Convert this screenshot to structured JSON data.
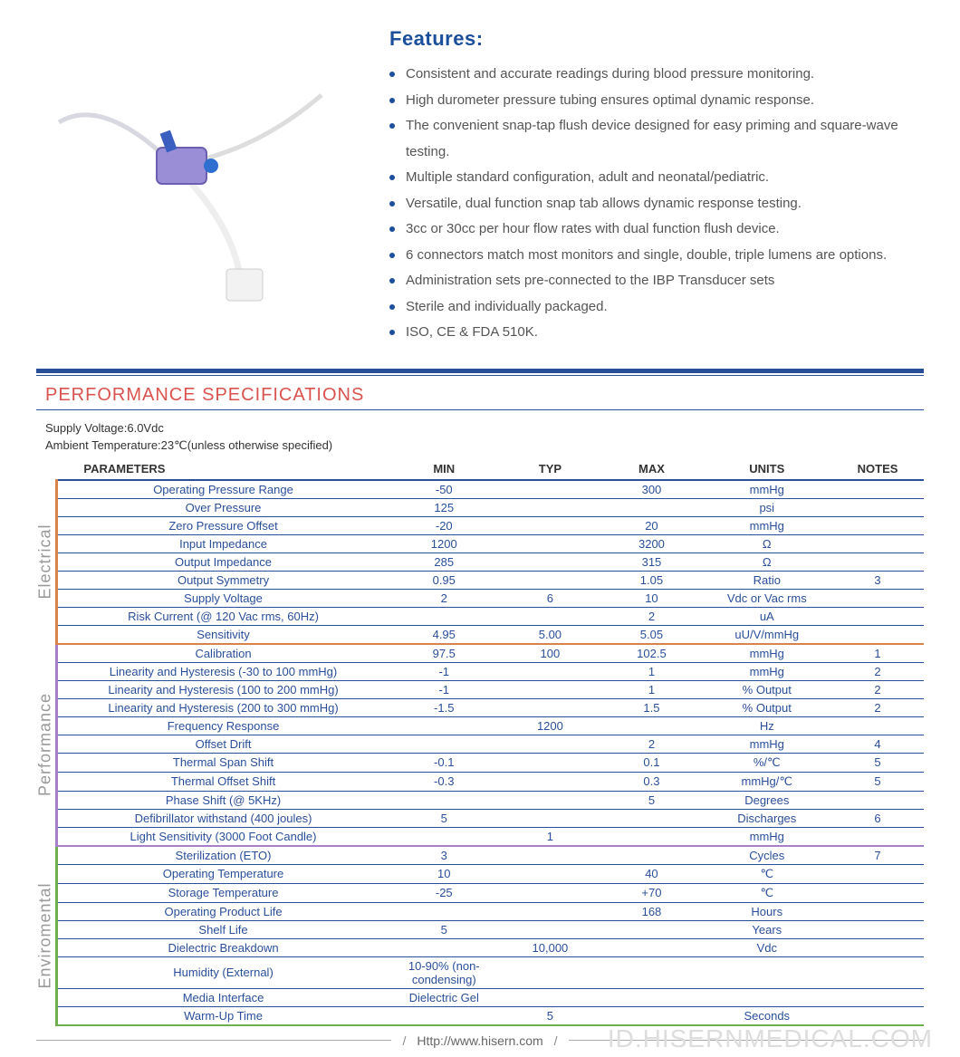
{
  "features": {
    "title": "Features:",
    "items": [
      "Consistent and accurate readings during blood pressure monitoring.",
      "High durometer pressure tubing ensures optimal dynamic response.",
      "The convenient snap-tap flush device designed for easy priming and square-wave testing.",
      "Multiple standard configuration, adult and neonatal/pediatric.",
      "Versatile, dual function snap tab allows dynamic response testing.",
      "3cc or 30cc per hour flow rates with dual function flush device.",
      "6 connectors match most monitors and single, double, triple lumens are options.",
      "Administration sets pre-connected to the IBP Transducer sets",
      "Sterile and individually packaged.",
      "ISO, CE & FDA 510K."
    ]
  },
  "spec": {
    "section_title": "PERFORMANCE SPECIFICATIONS",
    "conditions": [
      "Supply Voltage:6.0Vdc",
      "Ambient Temperature:23℃(unless otherwise specified)"
    ],
    "columns": [
      "PARAMETERS",
      "MIN",
      "TYP",
      "MAX",
      "UNITS",
      "NOTES"
    ],
    "groups": [
      {
        "label": "Electrical",
        "color": "#d9834a",
        "rows": [
          {
            "param": "Operating Pressure Range",
            "min": "-50",
            "typ": "",
            "max": "300",
            "units": "mmHg",
            "notes": ""
          },
          {
            "param": "Over  Pressure",
            "min": "125",
            "typ": "",
            "max": "",
            "units": "psi",
            "notes": ""
          },
          {
            "param": "Zero Pressure Offset",
            "min": "-20",
            "typ": "",
            "max": "20",
            "units": "mmHg",
            "notes": ""
          },
          {
            "param": "Input Impedance",
            "min": "1200",
            "typ": "",
            "max": "3200",
            "units": "Ω",
            "notes": ""
          },
          {
            "param": "Output Impedance",
            "min": "285",
            "typ": "",
            "max": "315",
            "units": "Ω",
            "notes": ""
          },
          {
            "param": "Output Symmetry",
            "min": "0.95",
            "typ": "",
            "max": "1.05",
            "units": "Ratio",
            "notes": "3"
          },
          {
            "param": "Supply Voltage",
            "min": "2",
            "typ": "6",
            "max": "10",
            "units": "Vdc or Vac rms",
            "notes": ""
          },
          {
            "param": "Risk Current (@ 120 Vac rms, 60Hz)",
            "min": "",
            "typ": "",
            "max": "2",
            "units": "uA",
            "notes": ""
          },
          {
            "param": "Sensitivity",
            "min": "4.95",
            "typ": "5.00",
            "max": "5.05",
            "units": "uU/V/mmHg",
            "notes": ""
          }
        ]
      },
      {
        "label": "Performance",
        "color": "#a97fc9",
        "rows": [
          {
            "param": "Calibration",
            "min": "97.5",
            "typ": "100",
            "max": "102.5",
            "units": "mmHg",
            "notes": "1"
          },
          {
            "param": "Linearity and Hysteresis (-30 to 100 mmHg)",
            "min": "-1",
            "typ": "",
            "max": "1",
            "units": "mmHg",
            "notes": "2"
          },
          {
            "param": "Linearity and Hysteresis (100 to 200 mmHg)",
            "min": "-1",
            "typ": "",
            "max": "1",
            "units": "% Output",
            "notes": "2"
          },
          {
            "param": "Linearity and Hysteresis (200 to 300 mmHg)",
            "min": "-1.5",
            "typ": "",
            "max": "1.5",
            "units": "% Output",
            "notes": "2"
          },
          {
            "param": "Frequency Response",
            "min": "",
            "typ": "1200",
            "max": "",
            "units": "Hz",
            "notes": ""
          },
          {
            "param": "Offset Drift",
            "min": "",
            "typ": "",
            "max": "2",
            "units": "mmHg",
            "notes": "4"
          },
          {
            "param": "Thermal Span Shift",
            "min": "-0.1",
            "typ": "",
            "max": "0.1",
            "units": "%/℃",
            "notes": "5"
          },
          {
            "param": "Thermal Offset Shift",
            "min": "-0.3",
            "typ": "",
            "max": "0.3",
            "units": "mmHg/℃",
            "notes": "5"
          },
          {
            "param": "Phase Shift (@ 5KHz)",
            "min": "",
            "typ": "",
            "max": "5",
            "units": "Degrees",
            "notes": ""
          },
          {
            "param": "Defibrillator withstand (400 joules)",
            "min": "5",
            "typ": "",
            "max": "",
            "units": "Discharges",
            "notes": "6"
          },
          {
            "param": "Light Sensitivity (3000 Foot Candle)",
            "min": "",
            "typ": "1",
            "max": "",
            "units": "mmHg",
            "notes": ""
          }
        ]
      },
      {
        "label": "Enviromental",
        "color": "#6fb04e",
        "rows": [
          {
            "param": "Sterilization (ETO)",
            "min": "3",
            "typ": "",
            "max": "",
            "units": "Cycles",
            "notes": "7"
          },
          {
            "param": "Operating Temperature",
            "min": "10",
            "typ": "",
            "max": "40",
            "units": "℃",
            "notes": ""
          },
          {
            "param": "Storage Temperature",
            "min": "-25",
            "typ": "",
            "max": "+70",
            "units": "℃",
            "notes": ""
          },
          {
            "param": "Operating Product Life",
            "min": "",
            "typ": "",
            "max": "168",
            "units": "Hours",
            "notes": ""
          },
          {
            "param": "Shelf Life",
            "min": "5",
            "typ": "",
            "max": "",
            "units": "Years",
            "notes": ""
          },
          {
            "param": "Dielectric Breakdown",
            "min": "",
            "typ": "10,000",
            "max": "",
            "units": "Vdc",
            "notes": ""
          },
          {
            "param": "Humidity (External)",
            "min": "10-90% (non-condensing)",
            "typ": "",
            "max": "",
            "units": "",
            "notes": ""
          },
          {
            "param": "Media Interface",
            "min": "Dielectric Gel",
            "typ": "",
            "max": "",
            "units": "",
            "notes": ""
          },
          {
            "param": "Warm-Up Time",
            "min": "",
            "typ": "5",
            "max": "",
            "units": "Seconds",
            "notes": ""
          }
        ]
      }
    ],
    "col_widths": {
      "side": "22px",
      "param": "360px",
      "min": "120px",
      "typ": "110px",
      "max": "110px",
      "units": "140px",
      "notes": "100px"
    }
  },
  "footer": {
    "url": "Http://www.hisern.com",
    "watermark": "ID.HISERNMEDICAL.COM"
  },
  "colors": {
    "title_blue": "#1b4f9c",
    "rule_blue": "#2a4f9a",
    "section_red": "#d9534f"
  }
}
